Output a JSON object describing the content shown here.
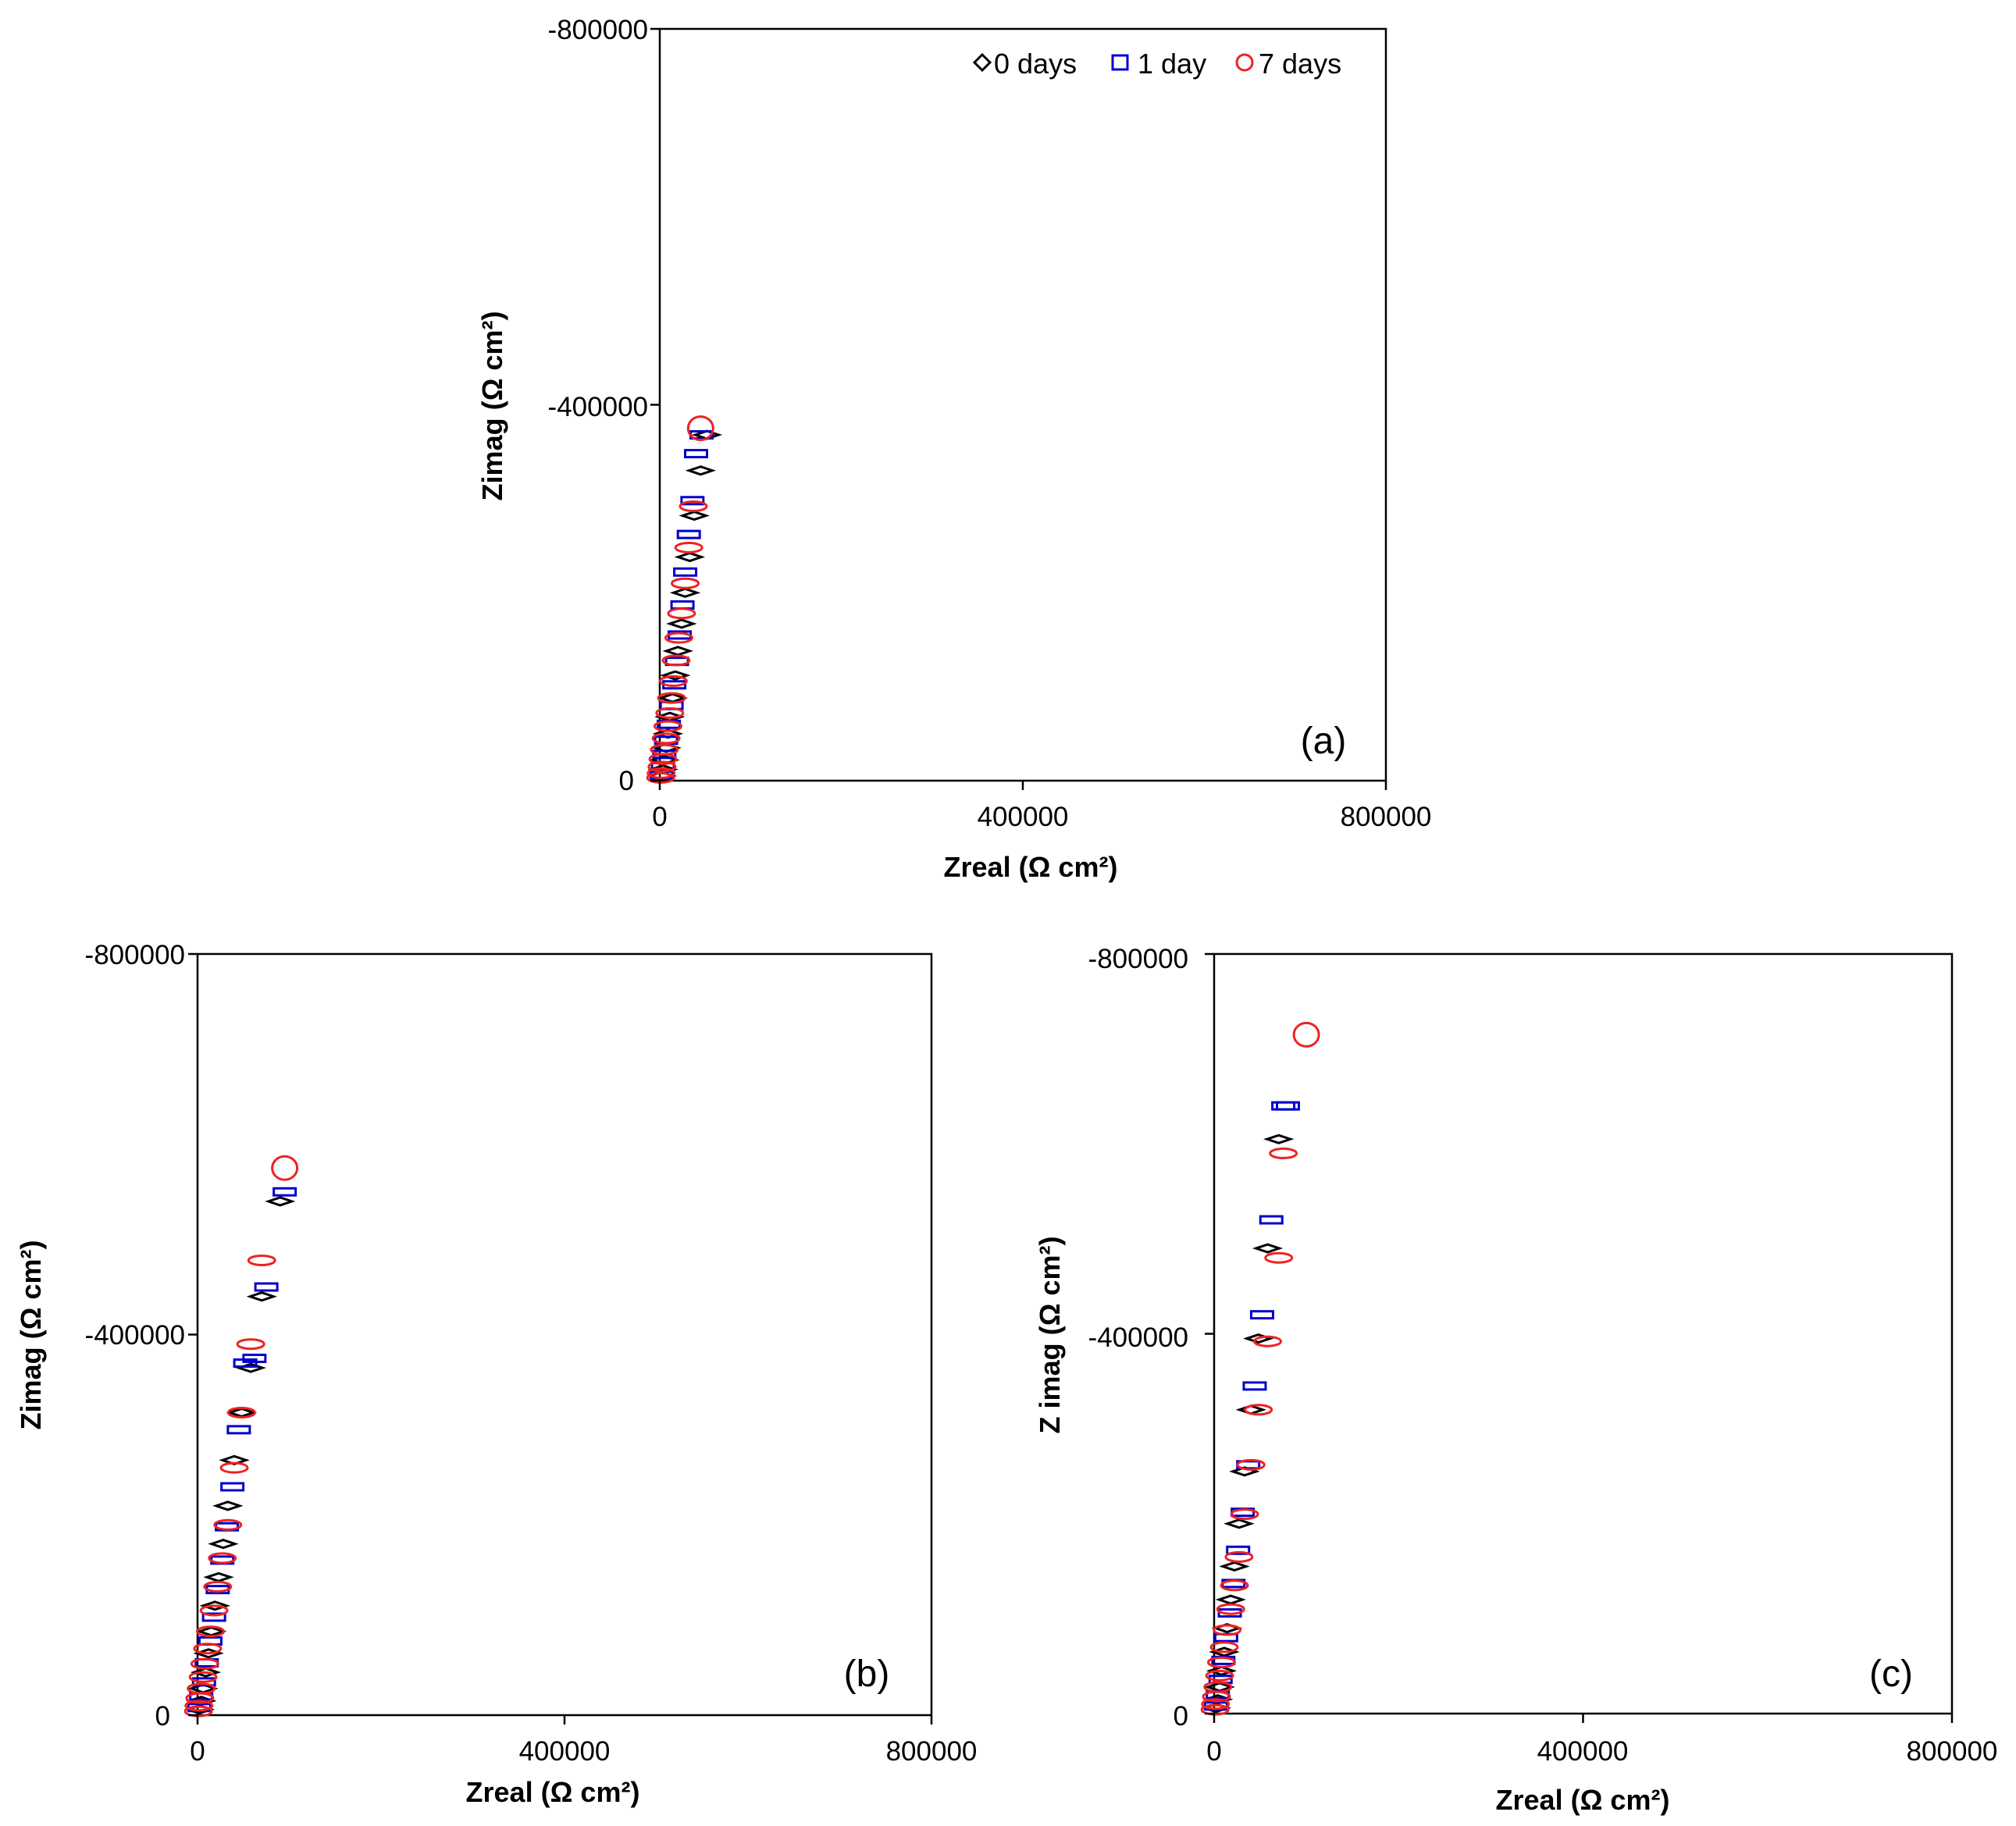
{
  "chart_data": [
    {
      "type": "scatter",
      "panel_label": "(a)",
      "xlabel": "Zreal (Ω cm²)",
      "ylabel": "Zimag (Ω cm²)",
      "xlim": [
        0,
        800000
      ],
      "ylim": [
        0,
        -800000
      ],
      "xticks": [
        "0",
        "400000",
        "800000"
      ],
      "yticks": [
        "0",
        "-400000",
        "-800000"
      ],
      "legend": {
        "position": "top-right",
        "entries": [
          "0 days",
          "1 day",
          "7 days"
        ]
      },
      "series": [
        {
          "name": "0 days",
          "marker": "diamond",
          "color": "#000000",
          "x": [
            2000,
            3500,
            5000,
            7000,
            9000,
            11000,
            14000,
            17000,
            20000,
            24000,
            28000,
            33000,
            38000,
            45000,
            52000
          ],
          "y": [
            -5000,
            -12000,
            -22000,
            -35000,
            -50000,
            -68000,
            -88000,
            -112000,
            -138000,
            -167000,
            -200000,
            -238000,
            -282000,
            -330000,
            -368000
          ]
        },
        {
          "name": "1 day",
          "marker": "square",
          "color": "#0000cc",
          "x": [
            2000,
            3500,
            5000,
            7000,
            10000,
            13000,
            16000,
            19000,
            22000,
            25000,
            28000,
            32000,
            36000,
            40000,
            46000
          ],
          "y": [
            -6000,
            -15000,
            -28000,
            -43000,
            -60000,
            -80000,
            -102000,
            -127000,
            -155000,
            -187000,
            -222000,
            -262000,
            -298000,
            -348000,
            -368000
          ]
        },
        {
          "name": "7 days",
          "marker": "circle",
          "color": "#ee2222",
          "x": [
            1000,
            1500,
            2500,
            3500,
            5000,
            7000,
            9000,
            11000,
            13000,
            15000,
            18000,
            21000,
            24000,
            28000,
            32000,
            37000,
            45000
          ],
          "y": [
            -3000,
            -8000,
            -15000,
            -23000,
            -33000,
            -45000,
            -58000,
            -72000,
            -88000,
            -106000,
            -128000,
            -152000,
            -178000,
            -210000,
            -248000,
            -292000,
            -375000
          ]
        }
      ]
    },
    {
      "type": "scatter",
      "panel_label": "(b)",
      "xlabel": "Zreal (Ω cm²)",
      "ylabel": "Zimag (Ω cm²)",
      "xlim": [
        0,
        800000
      ],
      "ylim": [
        0,
        -800000
      ],
      "xticks": [
        "0",
        "400000",
        "800000"
      ],
      "yticks": [
        "0",
        "-400000",
        "-800000"
      ],
      "series": [
        {
          "name": "0 days",
          "marker": "diamond",
          "color": "#000000",
          "x": [
            2000,
            4000,
            6000,
            9000,
            12000,
            15000,
            19000,
            23000,
            28000,
            33000,
            40000,
            48000,
            58000,
            70000,
            90000
          ],
          "y": [
            -6000,
            -15000,
            -28000,
            -45000,
            -65000,
            -88000,
            -115000,
            -145000,
            -180000,
            -220000,
            -268000,
            -318000,
            -365000,
            -440000,
            -540000
          ]
        },
        {
          "name": "1 day",
          "marker": "square",
          "color": "#0000cc",
          "x": [
            2000,
            4000,
            7000,
            10000,
            14000,
            18000,
            22000,
            27000,
            32000,
            38000,
            45000,
            52000,
            62000,
            75000,
            95000
          ],
          "y": [
            -8000,
            -20000,
            -35000,
            -55000,
            -78000,
            -103000,
            -132000,
            -163000,
            -198000,
            -240000,
            -300000,
            -370000,
            -375000,
            -450000,
            -550000
          ]
        },
        {
          "name": "7 days",
          "marker": "circle",
          "color": "#ee2222",
          "x": [
            1000,
            1500,
            2500,
            4000,
            6000,
            8000,
            11000,
            14000,
            18000,
            22000,
            27000,
            33000,
            40000,
            48000,
            58000,
            70000,
            95000
          ],
          "y": [
            -4000,
            -10000,
            -18000,
            -28000,
            -40000,
            -54000,
            -70000,
            -88000,
            -110000,
            -135000,
            -165000,
            -200000,
            -260000,
            -318000,
            -390000,
            -478000,
            -575000
          ]
        }
      ]
    },
    {
      "type": "scatter",
      "panel_label": "(c)",
      "xlabel": "Zreal (Ω cm²)",
      "ylabel": "Z imag (Ω cm²)",
      "xlim": [
        0,
        800000
      ],
      "ylim": [
        0,
        -800000
      ],
      "xticks": [
        "0",
        "400000",
        "800000"
      ],
      "yticks": [
        "0",
        "-400000",
        "-800000"
      ],
      "series": [
        {
          "name": "0 days",
          "marker": "diamond",
          "color": "#000000",
          "x": [
            2000,
            4000,
            6000,
            8000,
            11000,
            14000,
            18000,
            22000,
            27000,
            33000,
            40000,
            48000,
            58000,
            70000
          ],
          "y": [
            -6000,
            -15000,
            -28000,
            -45000,
            -65000,
            -90000,
            -120000,
            -155000,
            -200000,
            -255000,
            -320000,
            -395000,
            -490000,
            -605000
          ]
        },
        {
          "name": "1 day",
          "marker": "square",
          "color": "#0000cc",
          "x": [
            2000,
            4000,
            7000,
            10000,
            13000,
            17000,
            21000,
            26000,
            31000,
            37000,
            44000,
            52000,
            62000,
            75000,
            80000
          ],
          "y": [
            -8000,
            -20000,
            -36000,
            -56000,
            -80000,
            -106000,
            -137000,
            -172000,
            -212000,
            -262000,
            -345000,
            -420000,
            -520000,
            -640000,
            -640000
          ]
        },
        {
          "name": "7 days",
          "marker": "circle",
          "color": "#ee2222",
          "x": [
            1000,
            1500,
            2500,
            4000,
            6000,
            8000,
            11000,
            14000,
            18000,
            22000,
            27000,
            33000,
            40000,
            48000,
            58000,
            70000,
            75000,
            100000
          ],
          "y": [
            -4000,
            -10000,
            -18000,
            -28000,
            -40000,
            -54000,
            -70000,
            -88000,
            -110000,
            -135000,
            -165000,
            -210000,
            -262000,
            -320000,
            -392000,
            -480000,
            -590000,
            -715000
          ]
        }
      ]
    }
  ]
}
